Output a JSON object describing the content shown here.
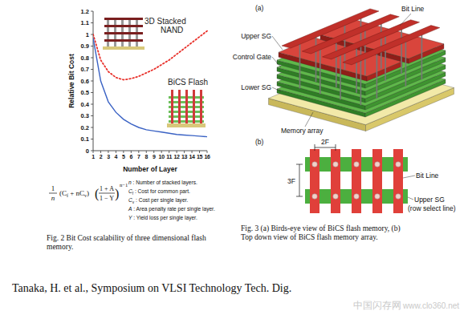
{
  "chart_data": {
    "type": "line",
    "x_label": "Number of Layer",
    "y_label": "Relative Bit Cost",
    "x": [
      1,
      2,
      3,
      4,
      5,
      6,
      7,
      8,
      9,
      10,
      11,
      12,
      13,
      14,
      15,
      16
    ],
    "series": [
      {
        "name": "3D Stacked NAND",
        "color": "#e8302a",
        "line_style": "dotted",
        "values": [
          1.0,
          0.78,
          0.68,
          0.63,
          0.61,
          0.62,
          0.64,
          0.67,
          0.7,
          0.74,
          0.78,
          0.83,
          0.88,
          0.93,
          0.98,
          1.03
        ]
      },
      {
        "name": "BiCS Flash",
        "color": "#3a62c4",
        "line_style": "solid",
        "values": [
          0.97,
          0.6,
          0.42,
          0.33,
          0.27,
          0.23,
          0.2,
          0.18,
          0.17,
          0.16,
          0.15,
          0.14,
          0.135,
          0.13,
          0.125,
          0.12
        ]
      }
    ],
    "xlim": [
      1,
      16
    ],
    "ylim": [
      0,
      1.2
    ],
    "xticks": [
      1,
      2,
      3,
      4,
      5,
      6,
      7,
      8,
      9,
      10,
      11,
      12,
      13,
      14,
      15,
      16
    ],
    "yticks": [
      0,
      0.1,
      0.2,
      0.3,
      0.4,
      0.5,
      0.6,
      0.7,
      0.8,
      0.9,
      1,
      1.1,
      1.2
    ],
    "grid": false
  },
  "figure": {
    "formula": {
      "lhs_num": "1",
      "lhs_den": "n",
      "factor": [
        {
          "t": "(C"
        },
        {
          "t": "f",
          "sub": true
        },
        {
          "t": " + nC"
        },
        {
          "t": "v",
          "sub": true
        },
        {
          "t": ")"
        }
      ],
      "num": "1 + A",
      "den": "1 − Y",
      "exp": "n−1"
    },
    "variables": [
      {
        "sym": "n",
        "sub": "",
        "desc": " : Number of stacked layers."
      },
      {
        "sym": "C",
        "sub": "f",
        "desc": " : Cost for common part."
      },
      {
        "sym": "C",
        "sub": "v",
        "desc": " : Cost per single layer."
      },
      {
        "sym": "A",
        "sub": "",
        "desc": " : Area penalty rate per single layer."
      },
      {
        "sym": "Y",
        "sub": "",
        "desc": " : Yield loss per single layer."
      }
    ],
    "fig2_caption": "Fig. 2 Bit Cost scalability of three dimensional flash memory.",
    "fig3": {
      "panel_a": "(a)",
      "panel_b": "(b)",
      "bit_line_a": "Bit Line",
      "upper_sg_a": "Upper SG",
      "control_gate": "Control Gate",
      "lower_sg": "Lower SG",
      "memory_array": "Memory array",
      "pitch_x": "2F",
      "pitch_y": "3F",
      "bit_line_b": "Bit Line",
      "upper_sg_b": [
        "Upper SG",
        "(row select line)"
      ],
      "caption": "Fig. 3 (a) Birds-eye view of BiCS flash memory, (b) Top down view of BiCS flash memory array."
    },
    "citation": "Tanaka, H. et al., Symposium on VLSI Technology Tech. Dig.",
    "watermark": [
      "中国闪存网",
      "www.clo360.net"
    ]
  }
}
